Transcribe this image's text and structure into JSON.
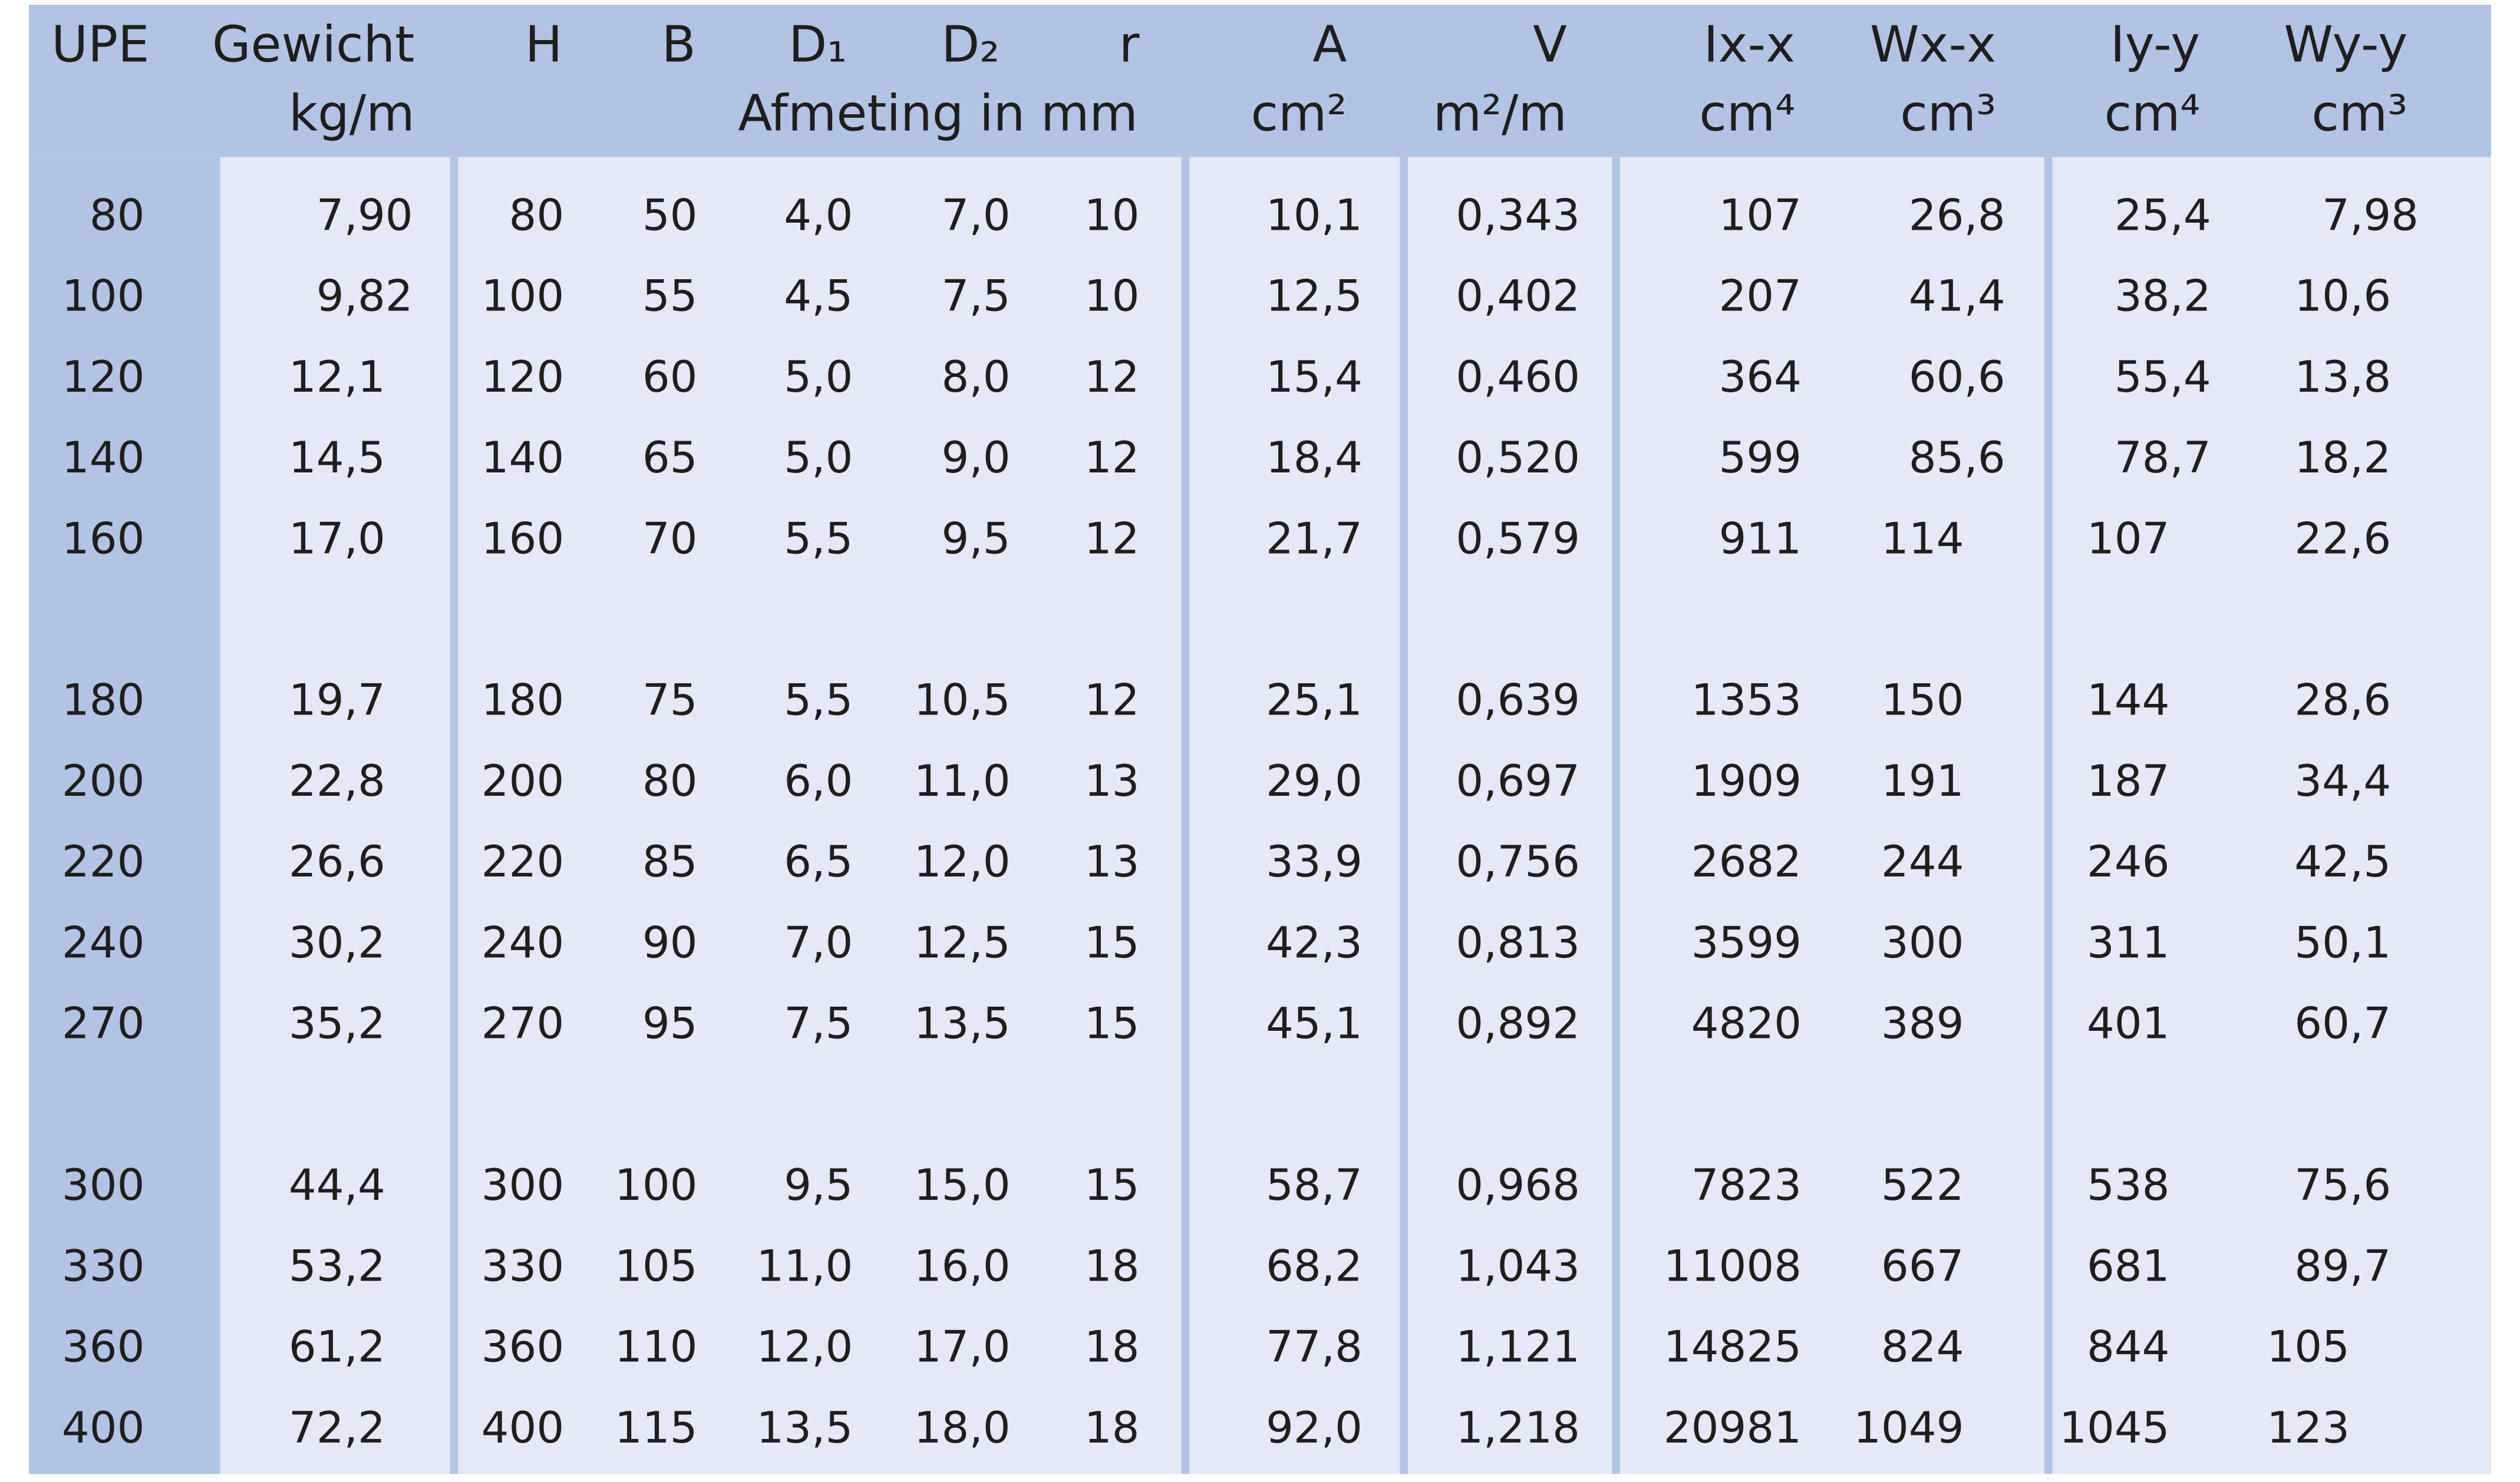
{
  "header": {
    "row1": [
      "UPE",
      "Gewicht",
      "H",
      "B",
      "D₁",
      "D₂",
      "r",
      "A",
      "V",
      "Ix-x",
      "Wx-x",
      "Iy-y",
      "Wy-y"
    ],
    "row2": [
      "kg/m",
      "Afmeting in mm",
      "cm²",
      "m²/m",
      "cm⁴",
      "cm³",
      "cm⁴",
      "cm³"
    ]
  },
  "table": {
    "rows": [
      [
        "80",
        "7,90",
        "80",
        "50",
        "4,0",
        "7,0",
        "10",
        "10,1",
        "0,343",
        "107",
        "26,8",
        "25,4",
        "7,98"
      ],
      [
        "100",
        "9,82",
        "100",
        "55",
        "4,5",
        "7,5",
        "10",
        "12,5",
        "0,402",
        "207",
        "41,4",
        "38,2",
        "10,6"
      ],
      [
        "120",
        "12,1",
        "120",
        "60",
        "5,0",
        "8,0",
        "12",
        "15,4",
        "0,460",
        "364",
        "60,6",
        "55,4",
        "13,8"
      ],
      [
        "140",
        "14,5",
        "140",
        "65",
        "5,0",
        "9,0",
        "12",
        "18,4",
        "0,520",
        "599",
        "85,6",
        "78,7",
        "18,2"
      ],
      [
        "160",
        "17,0",
        "160",
        "70",
        "5,5",
        "9,5",
        "12",
        "21,7",
        "0,579",
        "911",
        "114",
        "107",
        "22,6"
      ],
      [
        "180",
        "19,7",
        "180",
        "75",
        "5,5",
        "10,5",
        "12",
        "25,1",
        "0,639",
        "1353",
        "150",
        "144",
        "28,6"
      ],
      [
        "200",
        "22,8",
        "200",
        "80",
        "6,0",
        "11,0",
        "13",
        "29,0",
        "0,697",
        "1909",
        "191",
        "187",
        "34,4"
      ],
      [
        "220",
        "26,6",
        "220",
        "85",
        "6,5",
        "12,0",
        "13",
        "33,9",
        "0,756",
        "2682",
        "244",
        "246",
        "42,5"
      ],
      [
        "240",
        "30,2",
        "240",
        "90",
        "7,0",
        "12,5",
        "15",
        "42,3",
        "0,813",
        "3599",
        "300",
        "311",
        "50,1"
      ],
      [
        "270",
        "35,2",
        "270",
        "95",
        "7,5",
        "13,5",
        "15",
        "45,1",
        "0,892",
        "4820",
        "389",
        "401",
        "60,7"
      ],
      [
        "300",
        "44,4",
        "300",
        "100",
        "9,5",
        "15,0",
        "15",
        "58,7",
        "0,968",
        "7823",
        "522",
        "538",
        "75,6"
      ],
      [
        "330",
        "53,2",
        "330",
        "105",
        "11,0",
        "16,0",
        "18",
        "68,2",
        "1,043",
        "11008",
        "667",
        "681",
        "89,7"
      ],
      [
        "360",
        "61,2",
        "360",
        "110",
        "12,0",
        "17,0",
        "18",
        "77,8",
        "1,121",
        "14825",
        "824",
        "844",
        "105"
      ],
      [
        "400",
        "72,2",
        "400",
        "115",
        "13,5",
        "18,0",
        "18",
        "92,0",
        "1,218",
        "20981",
        "1049",
        "1045",
        "123"
      ]
    ]
  }
}
